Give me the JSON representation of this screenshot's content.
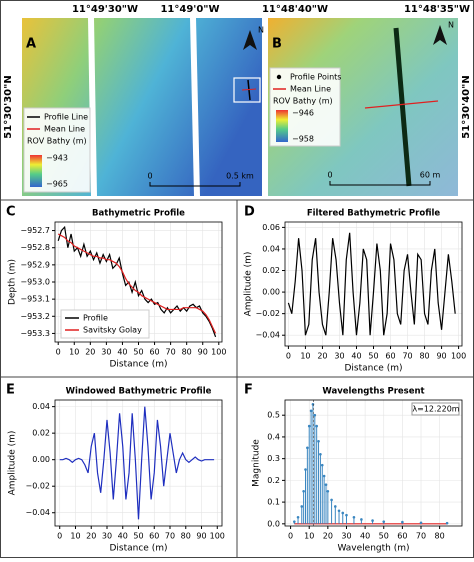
{
  "chart_data": [
    {
      "type": "map",
      "panel": "A",
      "x_labels": [
        "11°49'30\"W",
        "11°49'0\"W"
      ],
      "y_label": "51°30'30\"N",
      "legend": [
        {
          "name": "Profile Line",
          "color": "#000000",
          "marker": "line"
        },
        {
          "name": "Mean Line",
          "color": "#e02020",
          "marker": "line"
        }
      ],
      "colorbar_title": "ROV Bathy (m)",
      "colorbar_ticks": [
        {
          "value": -943,
          "label": "−943"
        },
        {
          "value": -965,
          "label": "−965"
        }
      ],
      "scale_labels": [
        "0",
        "0.5 km"
      ],
      "north": "N"
    },
    {
      "type": "map",
      "panel": "B",
      "x_labels": [
        "11°48'40\"W",
        "11°48'35\"W"
      ],
      "y_label": "51°30'40\"N",
      "legend": [
        {
          "name": "Profile Points",
          "color": "#000000",
          "marker": "dot"
        },
        {
          "name": "Mean Line",
          "color": "#e02020",
          "marker": "line"
        }
      ],
      "colorbar_title": "ROV Bathy (m)",
      "colorbar_ticks": [
        {
          "value": -946,
          "label": "−946"
        },
        {
          "value": -958,
          "label": "−958"
        }
      ],
      "scale_labels": [
        "0",
        "60 m"
      ],
      "north": "N"
    },
    {
      "type": "line",
      "panel": "C",
      "title": "Bathymetric Profile",
      "xlabel": "Distance (m)",
      "ylabel": "Depth (m)",
      "grid": true,
      "xlim": [
        -2,
        102
      ],
      "xticks": [
        0,
        10,
        20,
        30,
        40,
        50,
        60,
        70,
        80,
        90,
        100
      ],
      "ylim": [
        -953.35,
        -952.65
      ],
      "yticks": [
        {
          "value": -952.7,
          "label": "−952.7"
        },
        {
          "value": -952.8,
          "label": "−952.8"
        },
        {
          "value": -952.9,
          "label": "−952.9"
        },
        {
          "value": -953.0,
          "label": "−953.0"
        },
        {
          "value": -953.1,
          "label": "−953.1"
        },
        {
          "value": -953.2,
          "label": "−953.2"
        },
        {
          "value": -953.3,
          "label": "−953.3"
        }
      ],
      "x": [
        0,
        2,
        4,
        6,
        8,
        10,
        12,
        14,
        16,
        18,
        20,
        22,
        24,
        26,
        28,
        30,
        32,
        34,
        36,
        38,
        40,
        42,
        44,
        46,
        48,
        50,
        52,
        54,
        56,
        58,
        60,
        62,
        64,
        66,
        68,
        70,
        72,
        74,
        76,
        78,
        80,
        82,
        84,
        86,
        88,
        90,
        92,
        94,
        96,
        98
      ],
      "series": [
        {
          "name": "Profile",
          "color": "#000000",
          "values": [
            -952.76,
            -952.7,
            -952.68,
            -952.8,
            -952.72,
            -952.82,
            -952.8,
            -952.85,
            -952.78,
            -952.85,
            -952.82,
            -952.87,
            -952.83,
            -952.89,
            -952.84,
            -952.88,
            -952.84,
            -952.92,
            -952.9,
            -952.86,
            -952.95,
            -953.02,
            -953.0,
            -953.06,
            -953.0,
            -953.08,
            -953.05,
            -953.1,
            -953.12,
            -953.1,
            -953.13,
            -953.12,
            -953.16,
            -953.18,
            -953.15,
            -953.18,
            -953.16,
            -953.14,
            -953.17,
            -953.15,
            -953.17,
            -953.14,
            -953.13,
            -953.15,
            -953.14,
            -953.18,
            -953.2,
            -953.23,
            -953.27,
            -953.32
          ]
        },
        {
          "name": "Savitsky Golay",
          "color": "#e02020",
          "values": [
            -952.72,
            -952.73,
            -952.74,
            -952.76,
            -952.77,
            -952.79,
            -952.8,
            -952.81,
            -952.82,
            -952.83,
            -952.84,
            -952.85,
            -952.85,
            -952.86,
            -952.86,
            -952.87,
            -952.87,
            -952.88,
            -952.89,
            -952.91,
            -952.94,
            -952.98,
            -953.01,
            -953.03,
            -953.05,
            -953.06,
            -953.08,
            -953.09,
            -953.1,
            -953.11,
            -953.12,
            -953.13,
            -953.14,
            -953.15,
            -953.16,
            -953.16,
            -953.16,
            -953.16,
            -953.16,
            -953.15,
            -953.15,
            -953.15,
            -953.15,
            -953.15,
            -953.16,
            -953.17,
            -953.19,
            -953.22,
            -953.26,
            -953.3
          ]
        }
      ],
      "legend": true
    },
    {
      "type": "line",
      "panel": "D",
      "title": "Filtered Bathymetric Profile",
      "xlabel": "Distance (m)",
      "ylabel": "Amplitude (m)",
      "grid": true,
      "xlim": [
        -2,
        102
      ],
      "xticks": [
        0,
        10,
        20,
        30,
        40,
        50,
        60,
        70,
        80,
        90,
        100
      ],
      "ylim": [
        -0.05,
        0.065
      ],
      "yticks": [
        {
          "value": -0.04,
          "label": "−0.04"
        },
        {
          "value": -0.02,
          "label": "−0.02"
        },
        {
          "value": 0,
          "label": "0.00"
        },
        {
          "value": 0.02,
          "label": "0.02"
        },
        {
          "value": 0.04,
          "label": "0.04"
        },
        {
          "value": 0.06,
          "label": "0.06"
        }
      ],
      "x": [
        0,
        2,
        4,
        6,
        8,
        10,
        12,
        14,
        16,
        18,
        20,
        22,
        24,
        26,
        28,
        30,
        32,
        34,
        36,
        38,
        40,
        42,
        44,
        46,
        48,
        50,
        52,
        54,
        56,
        58,
        60,
        62,
        64,
        66,
        68,
        70,
        72,
        74,
        76,
        78,
        80,
        82,
        84,
        86,
        88,
        90,
        92,
        94,
        96,
        98
      ],
      "series": [
        {
          "name": "Filtered",
          "color": "#000000",
          "values": [
            -0.01,
            -0.02,
            0.01,
            0.05,
            0.02,
            -0.04,
            -0.03,
            0.03,
            0.05,
            0.0,
            -0.03,
            -0.04,
            0.0,
            0.05,
            0.03,
            -0.01,
            -0.04,
            0.03,
            0.055,
            0.0,
            -0.04,
            -0.01,
            0.04,
            0.03,
            -0.04,
            0.0,
            0.045,
            0.02,
            -0.04,
            -0.02,
            0.045,
            0.03,
            -0.02,
            -0.03,
            0.02,
            0.035,
            0.0,
            -0.03,
            0.035,
            0.03,
            -0.02,
            -0.03,
            0.02,
            0.04,
            -0.01,
            -0.035,
            0.0,
            0.035,
            0.01,
            -0.02
          ]
        }
      ]
    },
    {
      "type": "line",
      "panel": "E",
      "title": "Windowed Bathymetric Profile",
      "xlabel": "Distance (m)",
      "ylabel": "Amplitude (m)",
      "grid": true,
      "xlim": [
        -3,
        103
      ],
      "xticks": [
        0,
        10,
        20,
        30,
        40,
        50,
        60,
        70,
        80,
        90,
        100
      ],
      "ylim": [
        -0.05,
        0.045
      ],
      "yticks": [
        {
          "value": -0.04,
          "label": "−0.04"
        },
        {
          "value": -0.02,
          "label": "−0.02"
        },
        {
          "value": 0,
          "label": "0.00"
        },
        {
          "value": 0.02,
          "label": "0.02"
        },
        {
          "value": 0.04,
          "label": "0.04"
        }
      ],
      "x": [
        0,
        2,
        4,
        6,
        8,
        10,
        12,
        14,
        16,
        18,
        20,
        22,
        24,
        26,
        28,
        30,
        32,
        34,
        36,
        38,
        40,
        42,
        44,
        46,
        48,
        50,
        52,
        54,
        56,
        58,
        60,
        62,
        64,
        66,
        68,
        70,
        72,
        74,
        76,
        78,
        80,
        82,
        84,
        86,
        88,
        90,
        92,
        94,
        96,
        98
      ],
      "series": [
        {
          "name": "Windowed",
          "color": "#1f2fbf",
          "values": [
            0.0,
            0.0,
            0.001,
            0.0,
            -0.002,
            0.0,
            0.001,
            0.0,
            -0.004,
            -0.01,
            0.01,
            0.02,
            -0.01,
            -0.025,
            0.0,
            0.03,
            0.005,
            -0.03,
            0.0,
            0.035,
            0.01,
            -0.03,
            -0.01,
            0.035,
            0.0,
            -0.045,
            0.0,
            0.04,
            0.01,
            -0.03,
            -0.01,
            0.03,
            0.01,
            -0.02,
            0.0,
            0.02,
            0.005,
            -0.01,
            0.0,
            0.005,
            0.0,
            -0.002,
            0.0,
            0.002,
            0.0,
            -0.001,
            0.0,
            0.0,
            0.0,
            0.0
          ]
        }
      ]
    },
    {
      "type": "stem",
      "panel": "F",
      "title": "Wavelengths Present",
      "xlabel": "Wavelength (m)",
      "ylabel": "Magnitude",
      "grid": true,
      "xlim": [
        -3,
        92
      ],
      "xticks": [
        0,
        10,
        20,
        30,
        40,
        50,
        60,
        70,
        80
      ],
      "ylim": [
        -0.01,
        0.57
      ],
      "yticks": [
        {
          "value": 0,
          "label": "0.0"
        },
        0.1,
        0.2,
        0.3,
        0.4,
        0.5
      ],
      "x": [
        2,
        4,
        6,
        7,
        8,
        9,
        10,
        11,
        12,
        13,
        14,
        15,
        16,
        17,
        18,
        19,
        20,
        22,
        24,
        26,
        28,
        30,
        34,
        38,
        44,
        50,
        60,
        70,
        84
      ],
      "values": [
        0.01,
        0.03,
        0.08,
        0.15,
        0.25,
        0.35,
        0.45,
        0.52,
        0.55,
        0.5,
        0.45,
        0.38,
        0.32,
        0.27,
        0.22,
        0.18,
        0.15,
        0.11,
        0.08,
        0.06,
        0.05,
        0.04,
        0.03,
        0.02,
        0.015,
        0.01,
        0.008,
        0.005,
        0.003
      ],
      "color": "#3a86c0",
      "baseline_color": "#e02020",
      "annotation": {
        "value": 12.22,
        "label": "λ=12.220m"
      }
    }
  ]
}
